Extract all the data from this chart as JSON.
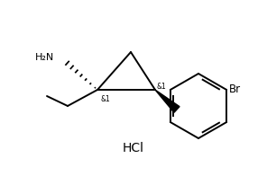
{
  "bg_color": "#ffffff",
  "line_color": "#000000",
  "line_width": 1.4,
  "hcl_text": "HCl",
  "hcl_fontsize": 10,
  "nh2_text": "H₂N",
  "br_text": "Br",
  "stereo_left": "&1",
  "stereo_right": "&1",
  "figsize": [
    2.96,
    1.96
  ],
  "dpi": 100
}
